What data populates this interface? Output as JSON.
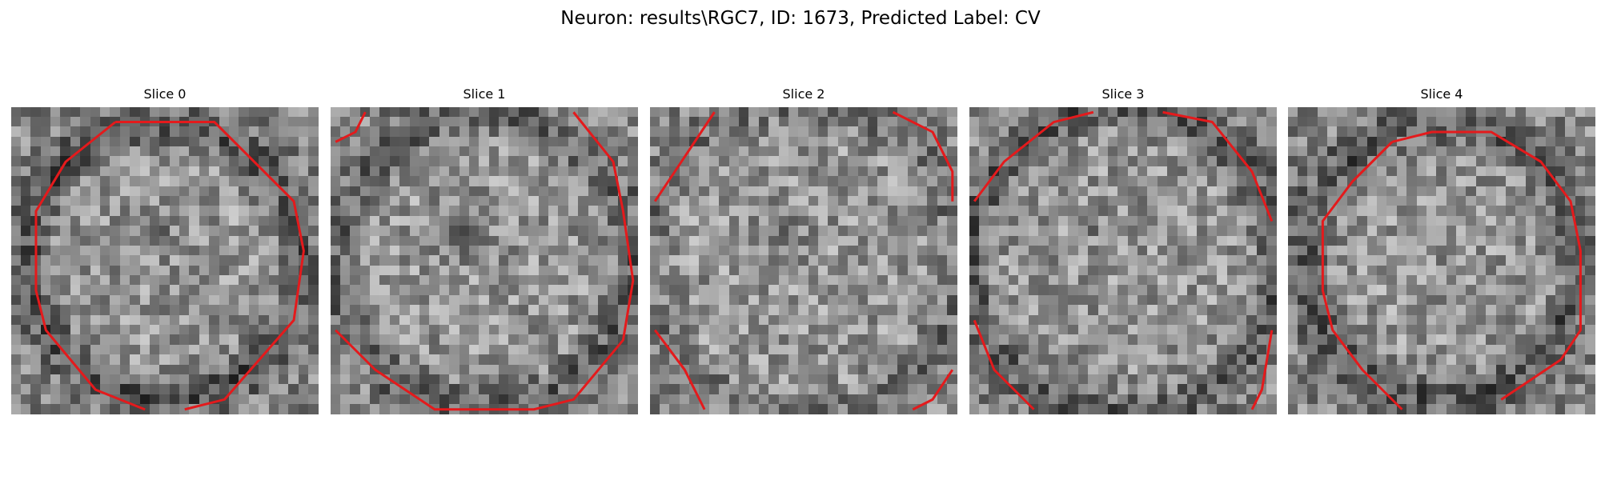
{
  "figure": {
    "title": "Neuron: results\\RGC7, ID: 1673, Predicted Label: CV"
  },
  "slices": [
    {
      "title": "Slice 0"
    },
    {
      "title": "Slice 1"
    },
    {
      "title": "Slice 2"
    },
    {
      "title": "Slice 3"
    },
    {
      "title": "Slice 4"
    }
  ],
  "contour_color": "#e41a1c"
}
